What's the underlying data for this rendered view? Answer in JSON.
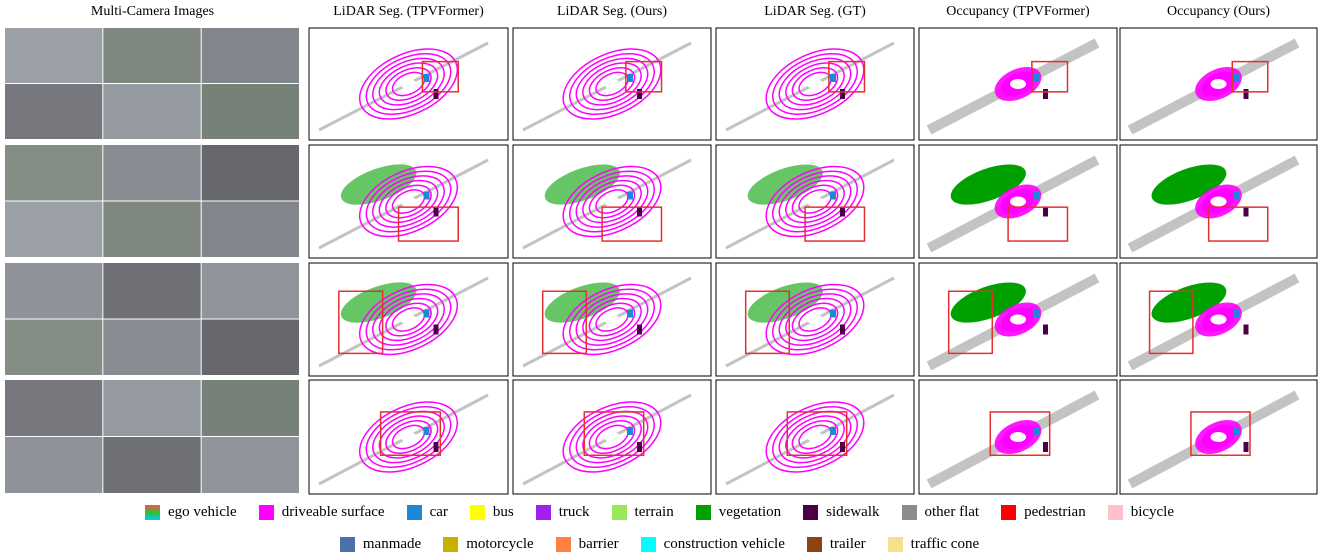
{
  "column_headers": [
    "Multi-Camera Images",
    "LiDAR Seg. (TPVFormer)",
    "LiDAR Seg. (Ours)",
    "LiDAR Seg. (GT)",
    "Occupancy (TPVFormer)",
    "Occupancy (Ours)"
  ],
  "legend": {
    "rows": [
      [
        {
          "name": "ego vehicle",
          "colors": [
            "#ff5050",
            "#30c030",
            "#00c8ff"
          ]
        },
        {
          "name": "driveable surface",
          "colors": [
            "#ff00ff"
          ]
        },
        {
          "name": "car",
          "colors": [
            "#1e88d8"
          ]
        },
        {
          "name": "bus",
          "colors": [
            "#ffff00"
          ]
        },
        {
          "name": "truck",
          "colors": [
            "#a020f0"
          ]
        },
        {
          "name": "terrain",
          "colors": [
            "#98e858"
          ]
        },
        {
          "name": "vegetation",
          "colors": [
            "#00a000"
          ]
        },
        {
          "name": "sidewalk",
          "colors": [
            "#4b0045"
          ]
        },
        {
          "name": "other flat",
          "colors": [
            "#8c8c8c"
          ]
        },
        {
          "name": "pedestrian",
          "colors": [
            "#ff0000"
          ]
        },
        {
          "name": "bicycle",
          "colors": [
            "#ffc0cb"
          ]
        }
      ],
      [
        {
          "name": "manmade",
          "colors": [
            "#4a72a8"
          ]
        },
        {
          "name": "motorcycle",
          "colors": [
            "#c8b000"
          ]
        },
        {
          "name": "barrier",
          "colors": [
            "#ff8040"
          ]
        },
        {
          "name": "construction vehicle",
          "colors": [
            "#00ffff"
          ]
        },
        {
          "name": "trailer",
          "colors": [
            "#8b4513"
          ]
        },
        {
          "name": "traffic cone",
          "colors": [
            "#f5e08c"
          ]
        }
      ]
    ]
  }
}
